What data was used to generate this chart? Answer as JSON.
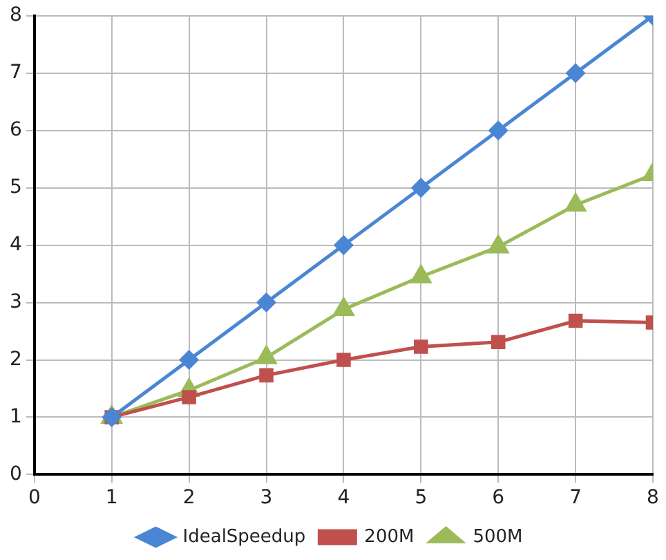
{
  "chart_data": {
    "type": "line",
    "x": [
      1,
      2,
      3,
      4,
      5,
      6,
      7,
      8
    ],
    "xlim": [
      0,
      8
    ],
    "xticks": [
      0,
      1,
      2,
      3,
      4,
      5,
      6,
      7,
      8
    ],
    "ylim": [
      0,
      8
    ],
    "yticks": [
      0,
      1,
      2,
      3,
      4,
      5,
      6,
      7,
      8
    ],
    "grid": true,
    "legend": "bottom",
    "line_style": "solid",
    "series": [
      {
        "name": "IdealSpeedup",
        "color": "#4a86d4",
        "marker": "diamond",
        "values": [
          1,
          2,
          3,
          4,
          5,
          6,
          7,
          8
        ]
      },
      {
        "name": "200M",
        "color": "#c0504d",
        "marker": "square",
        "values": [
          1,
          1.35,
          1.73,
          2.0,
          2.23,
          2.31,
          2.68,
          2.65
        ]
      },
      {
        "name": "500M",
        "color": "#9bbb59",
        "marker": "triangle",
        "values": [
          1,
          1.47,
          2.04,
          2.88,
          3.45,
          3.97,
          4.7,
          5.23
        ]
      }
    ]
  }
}
